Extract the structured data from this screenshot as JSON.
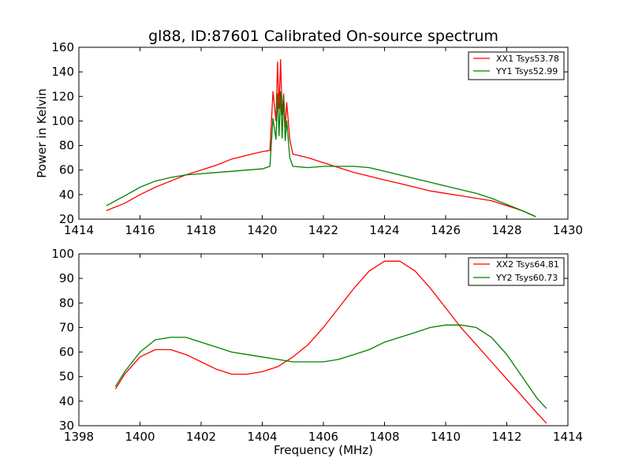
{
  "chart_data": [
    {
      "type": "line",
      "title": "gl88, ID:87601 Calibrated On-source spectrum",
      "xlabel": "",
      "ylabel": "Power in Kelvin",
      "xlim": [
        1414,
        1430
      ],
      "ylim": [
        20,
        160
      ],
      "xticks": [
        "1414",
        "1416",
        "1418",
        "1420",
        "1422",
        "1424",
        "1426",
        "1428",
        "1430"
      ],
      "yticks": [
        "20",
        "40",
        "60",
        "80",
        "100",
        "120",
        "140",
        "160"
      ],
      "legend_placement": "top-right",
      "series": [
        {
          "name": "XX1 Tsys53.78",
          "color": "#ff0000",
          "x": [
            1414.9,
            1415.5,
            1416.0,
            1416.5,
            1417.0,
            1417.5,
            1418.0,
            1418.5,
            1419.0,
            1419.5,
            1420.0,
            1420.25,
            1420.35,
            1420.45,
            1420.5,
            1420.55,
            1420.6,
            1420.65,
            1420.7,
            1420.75,
            1420.8,
            1420.9,
            1421.0,
            1421.5,
            1422.0,
            1422.5,
            1423.0,
            1423.5,
            1424.0,
            1424.5,
            1425.0,
            1425.5,
            1426.0,
            1426.5,
            1427.0,
            1427.5,
            1428.0,
            1428.5,
            1428.95
          ],
          "y": [
            27,
            33,
            40,
            46,
            51,
            56,
            60,
            64,
            69,
            72,
            75,
            76,
            124,
            100,
            148,
            110,
            150,
            105,
            122,
            95,
            115,
            85,
            73,
            70,
            66,
            62,
            58,
            55,
            52,
            49,
            46,
            43,
            41,
            39,
            37,
            35,
            31,
            27,
            22
          ]
        },
        {
          "name": "YY1 Tsys52.99",
          "color": "#008000",
          "x": [
            1414.9,
            1415.5,
            1416.0,
            1416.5,
            1417.0,
            1417.5,
            1418.0,
            1418.5,
            1419.0,
            1419.5,
            1420.0,
            1420.25,
            1420.35,
            1420.45,
            1420.5,
            1420.55,
            1420.6,
            1420.65,
            1420.7,
            1420.75,
            1420.8,
            1420.9,
            1421.0,
            1421.5,
            1422.0,
            1422.5,
            1423.0,
            1423.5,
            1424.0,
            1424.5,
            1425.0,
            1425.5,
            1426.0,
            1426.5,
            1427.0,
            1427.5,
            1428.0,
            1428.5,
            1428.95
          ],
          "y": [
            31,
            39,
            46,
            51,
            54,
            56,
            57,
            58,
            59,
            60,
            61,
            63,
            102,
            85,
            122,
            88,
            124,
            86,
            120,
            84,
            100,
            70,
            63,
            62,
            63,
            63,
            63,
            62,
            59,
            56,
            53,
            50,
            47,
            44,
            41,
            37,
            32,
            27,
            22
          ]
        }
      ]
    },
    {
      "type": "line",
      "title": "",
      "xlabel": "Frequency (MHz)",
      "ylabel": "",
      "xlim": [
        1398,
        1414
      ],
      "ylim": [
        30,
        100
      ],
      "xticks": [
        "1398",
        "1400",
        "1402",
        "1404",
        "1406",
        "1408",
        "1410",
        "1412",
        "1414"
      ],
      "yticks": [
        "30",
        "40",
        "50",
        "60",
        "70",
        "80",
        "90",
        "100"
      ],
      "legend_placement": "top-right",
      "series": [
        {
          "name": "XX2 Tsys64.81",
          "color": "#ff0000",
          "x": [
            1399.2,
            1399.5,
            1400.0,
            1400.5,
            1401.0,
            1401.5,
            1402.0,
            1402.5,
            1403.0,
            1403.5,
            1404.0,
            1404.5,
            1405.0,
            1405.5,
            1406.0,
            1406.5,
            1407.0,
            1407.5,
            1408.0,
            1408.5,
            1409.0,
            1409.5,
            1410.0,
            1410.5,
            1411.0,
            1411.5,
            1412.0,
            1412.5,
            1413.0,
            1413.3
          ],
          "y": [
            45,
            51,
            58,
            61,
            61,
            59,
            56,
            53,
            51,
            51,
            52,
            54,
            58,
            63,
            70,
            78,
            86,
            93,
            97,
            97,
            93,
            86,
            78,
            70,
            63,
            56,
            49,
            42,
            35,
            31
          ]
        },
        {
          "name": "YY2 Tsys60.73",
          "color": "#008000",
          "x": [
            1399.2,
            1399.5,
            1400.0,
            1400.5,
            1401.0,
            1401.5,
            1402.0,
            1402.5,
            1403.0,
            1403.5,
            1404.0,
            1404.5,
            1405.0,
            1405.5,
            1406.0,
            1406.5,
            1407.0,
            1407.5,
            1408.0,
            1408.5,
            1409.0,
            1409.5,
            1410.0,
            1410.5,
            1411.0,
            1411.5,
            1412.0,
            1412.5,
            1413.0,
            1413.3
          ],
          "y": [
            46,
            52,
            60,
            65,
            66,
            66,
            64,
            62,
            60,
            59,
            58,
            57,
            56,
            56,
            56,
            57,
            59,
            61,
            64,
            66,
            68,
            70,
            71,
            71,
            70,
            66,
            59,
            50,
            41,
            37
          ]
        }
      ]
    }
  ]
}
